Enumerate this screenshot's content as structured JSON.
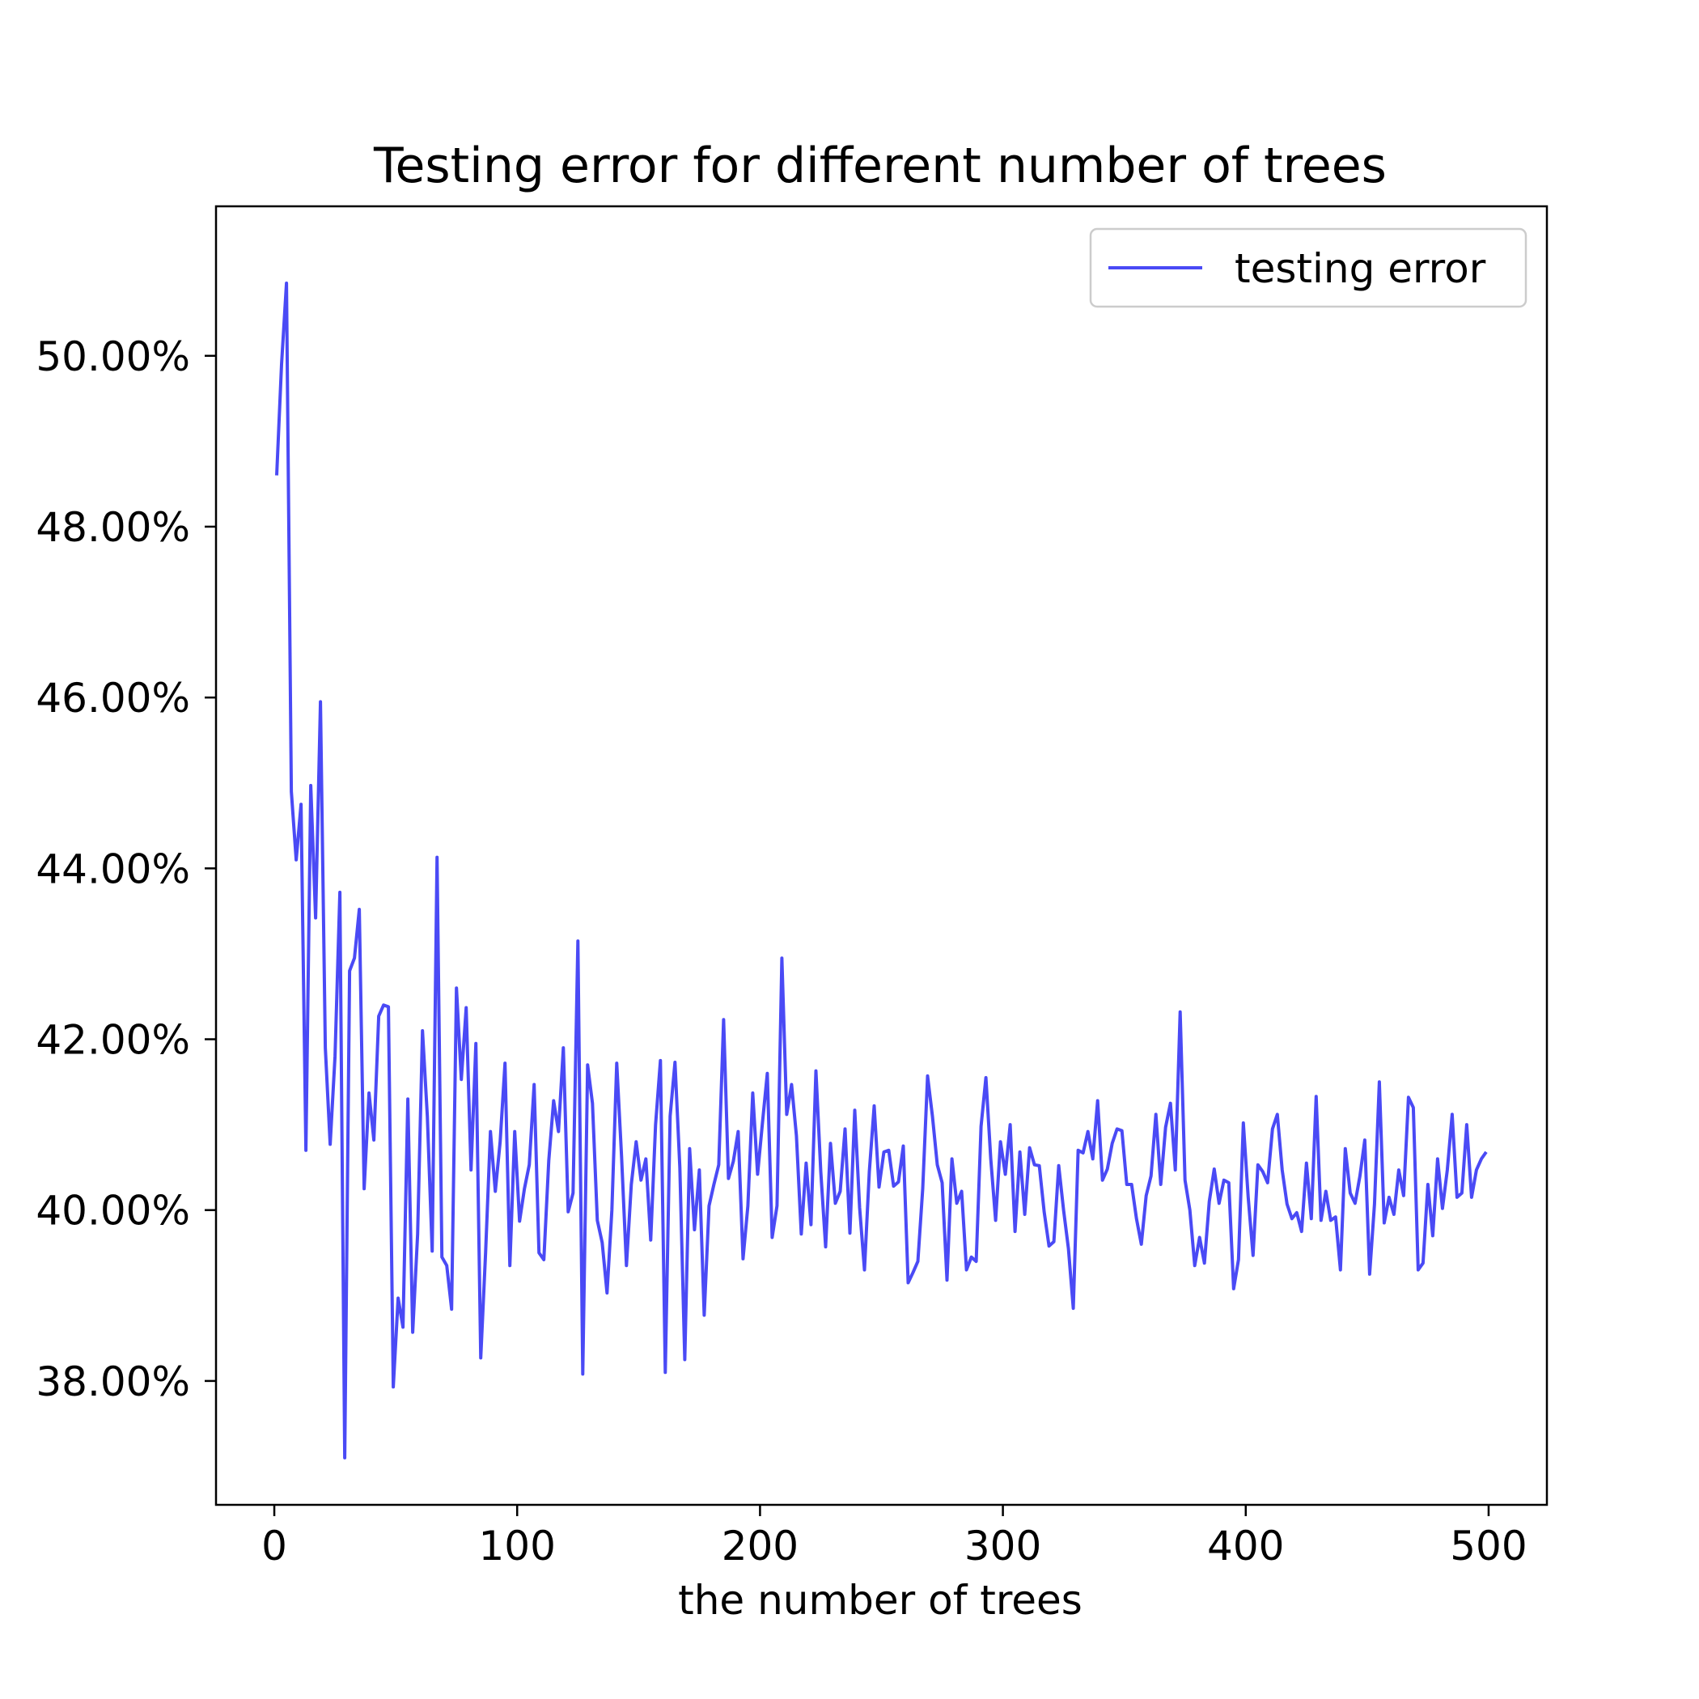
{
  "chart_data": {
    "type": "line",
    "title": "Testing error for different number of trees",
    "xlabel": "the number of trees",
    "ylabel": "",
    "xlim": [
      -24,
      524
    ],
    "ylim": [
      36.55,
      51.75
    ],
    "x_ticks": [
      0,
      100,
      200,
      300,
      400,
      500
    ],
    "y_ticks": [
      38,
      40,
      42,
      44,
      46,
      48,
      50
    ],
    "y_tick_format": "percent_2dp",
    "grid": false,
    "legend": {
      "position": "top-right",
      "entries": [
        "testing error"
      ]
    },
    "series": [
      {
        "name": "testing error",
        "color": "#4a4af5",
        "x": [
          1,
          3,
          5,
          7,
          9,
          11,
          13,
          15,
          17,
          19,
          21,
          23,
          25,
          27,
          29,
          31,
          33,
          35,
          37,
          39,
          41,
          43,
          45,
          47,
          49,
          51,
          53,
          55,
          57,
          59,
          61,
          63,
          65,
          67,
          69,
          71,
          73,
          75,
          77,
          79,
          81,
          83,
          85,
          87,
          89,
          91,
          93,
          95,
          97,
          99,
          101,
          103,
          105,
          107,
          109,
          111,
          113,
          115,
          117,
          119,
          121,
          123,
          125,
          127,
          129,
          131,
          133,
          135,
          137,
          139,
          141,
          143,
          145,
          147,
          149,
          151,
          153,
          155,
          157,
          159,
          161,
          163,
          165,
          167,
          169,
          171,
          173,
          175,
          177,
          179,
          181,
          183,
          185,
          187,
          189,
          191,
          193,
          195,
          197,
          199,
          201,
          203,
          205,
          207,
          209,
          211,
          213,
          215,
          217,
          219,
          221,
          223,
          225,
          227,
          229,
          231,
          233,
          235,
          237,
          239,
          241,
          243,
          245,
          247,
          249,
          251,
          253,
          255,
          257,
          259,
          261,
          263,
          265,
          267,
          269,
          271,
          273,
          275,
          277,
          279,
          281,
          283,
          285,
          287,
          289,
          291,
          293,
          295,
          297,
          299,
          301,
          303,
          305,
          307,
          309,
          311,
          313,
          315,
          317,
          319,
          321,
          323,
          325,
          327,
          329,
          331,
          333,
          335,
          337,
          339,
          341,
          343,
          345,
          347,
          349,
          351,
          353,
          355,
          357,
          359,
          361,
          363,
          365,
          367,
          369,
          371,
          373,
          375,
          377,
          379,
          381,
          383,
          385,
          387,
          389,
          391,
          393,
          395,
          397,
          399,
          401,
          403,
          405,
          407,
          409,
          411,
          413,
          415,
          417,
          419,
          421,
          423,
          425,
          427,
          429,
          431,
          433,
          435,
          437,
          439,
          441,
          443,
          445,
          447,
          449,
          451,
          453,
          455,
          457,
          459,
          461,
          463,
          465,
          467,
          469,
          471,
          473,
          475,
          477,
          479,
          481,
          483,
          485,
          487,
          489,
          491,
          493,
          495,
          497,
          499
        ],
        "y": [
          48.6,
          49.9,
          50.85,
          44.9,
          44.1,
          44.75,
          40.7,
          44.97,
          43.42,
          45.95,
          41.9,
          40.77,
          41.8,
          43.72,
          37.1,
          42.8,
          42.95,
          43.52,
          40.25,
          41.37,
          40.82,
          42.27,
          42.4,
          42.38,
          37.93,
          38.97,
          38.63,
          41.3,
          38.57,
          39.72,
          42.1,
          41.1,
          39.52,
          44.13,
          39.45,
          39.35,
          38.84,
          42.6,
          41.53,
          42.37,
          40.47,
          41.95,
          38.27,
          39.5,
          40.92,
          40.22,
          40.8,
          41.72,
          39.35,
          40.92,
          39.87,
          40.25,
          40.53,
          41.47,
          39.5,
          39.42,
          40.58,
          41.28,
          40.92,
          41.9,
          39.98,
          40.2,
          43.15,
          38.08,
          41.7,
          41.25,
          39.88,
          39.62,
          39.03,
          40.0,
          41.72,
          40.62,
          39.35,
          40.3,
          40.8,
          40.35,
          40.6,
          39.65,
          41.0,
          41.75,
          38.1,
          41.1,
          41.73,
          40.5,
          38.25,
          40.72,
          39.77,
          40.47,
          38.77,
          40.05,
          40.3,
          40.53,
          42.23,
          40.37,
          40.57,
          40.92,
          39.43,
          40.05,
          41.37,
          40.42,
          41.02,
          41.6,
          39.68,
          40.05,
          42.95,
          41.12,
          41.47,
          40.87,
          39.72,
          40.55,
          39.83,
          41.63,
          40.45,
          39.57,
          40.78,
          40.08,
          40.22,
          40.95,
          39.73,
          41.17,
          40.03,
          39.3,
          40.45,
          41.22,
          40.27,
          40.68,
          40.7,
          40.28,
          40.33,
          40.75,
          39.15,
          39.27,
          39.4,
          40.25,
          41.57,
          41.1,
          40.53,
          40.32,
          39.18,
          40.6,
          40.08,
          40.22,
          39.3,
          39.45,
          39.4,
          40.98,
          41.55,
          40.6,
          39.88,
          40.8,
          40.42,
          41.0,
          39.75,
          40.68,
          39.95,
          40.73,
          40.53,
          40.52,
          39.98,
          39.58,
          39.63,
          40.52,
          40.0,
          39.55,
          38.85,
          40.7,
          40.67,
          40.92,
          40.6,
          41.28,
          40.35,
          40.48,
          40.78,
          40.95,
          40.93,
          40.3,
          40.3,
          39.9,
          39.6,
          40.17,
          40.4,
          41.12,
          40.3,
          40.97,
          41.25,
          40.47,
          42.32,
          40.35,
          40.0,
          39.35,
          39.68,
          39.38,
          40.1,
          40.48,
          40.08,
          40.35,
          40.32,
          39.08,
          39.42,
          41.02,
          40.15,
          39.47,
          40.53,
          40.45,
          40.32,
          40.95,
          41.12,
          40.47,
          40.07,
          39.9,
          39.97,
          39.75,
          40.55,
          39.9,
          41.33,
          39.88,
          40.22,
          39.88,
          39.92,
          39.3,
          40.72,
          40.2,
          40.08,
          40.4,
          40.82,
          39.25,
          40.07,
          41.5,
          39.85,
          40.15,
          39.95,
          40.47,
          40.17,
          41.32,
          41.2,
          39.3,
          39.38,
          40.3,
          39.7,
          40.6,
          40.02,
          40.47,
          41.12,
          40.15,
          40.2,
          41.0,
          40.15,
          40.47,
          40.6,
          40.68
        ]
      }
    ]
  }
}
